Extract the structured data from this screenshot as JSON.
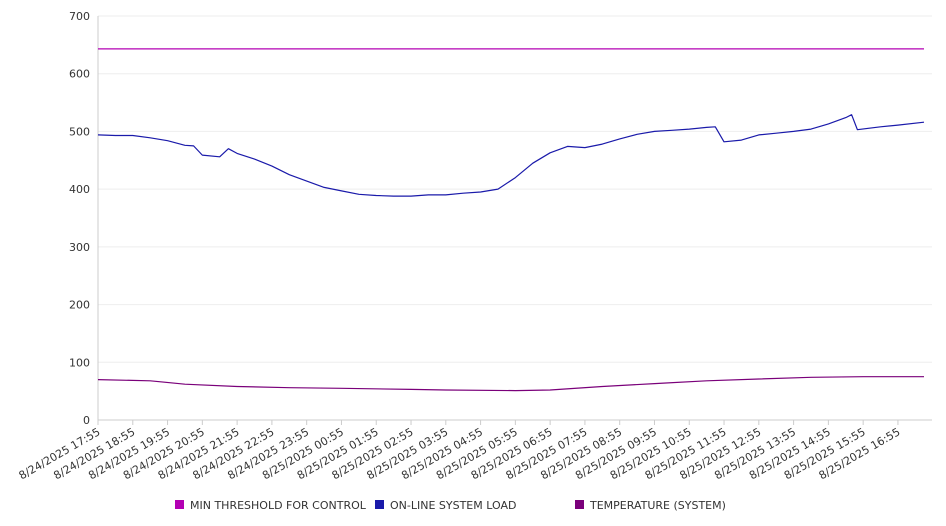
{
  "chart_data": {
    "type": "line",
    "ylim": [
      0,
      700
    ],
    "y_ticks": [
      "0",
      "100",
      "200",
      "300",
      "400",
      "500",
      "600",
      "700"
    ],
    "x_tick_labels": [
      "8/24/2025 17:55",
      "8/24/2025 18:55",
      "8/24/2025 19:55",
      "8/24/2025 20:55",
      "8/24/2025 21:55",
      "8/24/2025 22:55",
      "8/24/2025 23:55",
      "8/25/2025 00:55",
      "8/25/2025 01:55",
      "8/25/2025 02:55",
      "8/25/2025 03:55",
      "8/25/2025 04:55",
      "8/25/2025 05:55",
      "8/25/2025 06:55",
      "8/25/2025 07:55",
      "8/25/2025 08:55",
      "8/25/2025 09:55",
      "8/25/2025 10:55",
      "8/25/2025 11:55",
      "8/25/2025 12:55",
      "8/25/2025 13:55",
      "8/25/2025 14:55",
      "8/25/2025 15:55",
      "8/25/2025 16:55"
    ],
    "grid": true,
    "legend_position": "bottom",
    "series": [
      {
        "name": "MIN THRESHOLD FOR CONTROL",
        "color": "#b300b3",
        "x": [
          "8/24/2025 17:55",
          "8/25/2025 17:40"
        ],
        "y": [
          643,
          643
        ]
      },
      {
        "name": "ON-LINE SYSTEM LOAD",
        "color": "#1a1aaa",
        "x": [
          "8/24/2025 17:55",
          "8/24/2025 18:25",
          "8/24/2025 18:55",
          "8/24/2025 19:25",
          "8/24/2025 19:55",
          "8/24/2025 20:25",
          "8/24/2025 20:40",
          "8/24/2025 20:55",
          "8/24/2025 21:25",
          "8/24/2025 21:40",
          "8/24/2025 21:55",
          "8/24/2025 22:25",
          "8/24/2025 22:55",
          "8/24/2025 23:25",
          "8/24/2025 23:55",
          "8/25/2025 00:25",
          "8/25/2025 00:55",
          "8/25/2025 01:25",
          "8/25/2025 01:55",
          "8/25/2025 02:25",
          "8/25/2025 02:55",
          "8/25/2025 03:25",
          "8/25/2025 03:55",
          "8/25/2025 04:25",
          "8/25/2025 04:55",
          "8/25/2025 05:25",
          "8/25/2025 05:55",
          "8/25/2025 06:25",
          "8/25/2025 06:55",
          "8/25/2025 07:25",
          "8/25/2025 07:55",
          "8/25/2025 08:25",
          "8/25/2025 08:55",
          "8/25/2025 09:25",
          "8/25/2025 09:55",
          "8/25/2025 10:25",
          "8/25/2025 10:55",
          "8/25/2025 11:25",
          "8/25/2025 11:40",
          "8/25/2025 11:55",
          "8/25/2025 12:25",
          "8/25/2025 12:55",
          "8/25/2025 13:25",
          "8/25/2025 13:55",
          "8/25/2025 14:25",
          "8/25/2025 14:55",
          "8/25/2025 15:25",
          "8/25/2025 15:35",
          "8/25/2025 15:45",
          "8/25/2025 16:25",
          "8/25/2025 16:55",
          "8/25/2025 17:40"
        ],
        "y": [
          494,
          493,
          493,
          489,
          484,
          476,
          475,
          459,
          456,
          470,
          462,
          452,
          440,
          425,
          414,
          403,
          397,
          391,
          389,
          388,
          388,
          390,
          390,
          393,
          395,
          400,
          420,
          445,
          463,
          474,
          472,
          478,
          487,
          495,
          500,
          502,
          504,
          507,
          508,
          482,
          485,
          494,
          497,
          500,
          504,
          513,
          524,
          529,
          503,
          508,
          511,
          516
        ]
      },
      {
        "name": "TEMPERATURE (SYSTEM)",
        "color": "#7a007a",
        "x": [
          "8/24/2025 17:55",
          "8/24/2025 19:25",
          "8/24/2025 20:25",
          "8/24/2025 21:55",
          "8/24/2025 23:25",
          "8/25/2025 00:55",
          "8/25/2025 02:55",
          "8/25/2025 03:55",
          "8/25/2025 05:55",
          "8/25/2025 06:55",
          "8/25/2025 08:25",
          "8/25/2025 09:55",
          "8/25/2025 11:25",
          "8/25/2025 12:55",
          "8/25/2025 14:25",
          "8/25/2025 15:55",
          "8/25/2025 17:40"
        ],
        "y": [
          70,
          68,
          62,
          58,
          56,
          55,
          53,
          52,
          51,
          52,
          58,
          63,
          68,
          71,
          74,
          75,
          75
        ]
      }
    ]
  }
}
